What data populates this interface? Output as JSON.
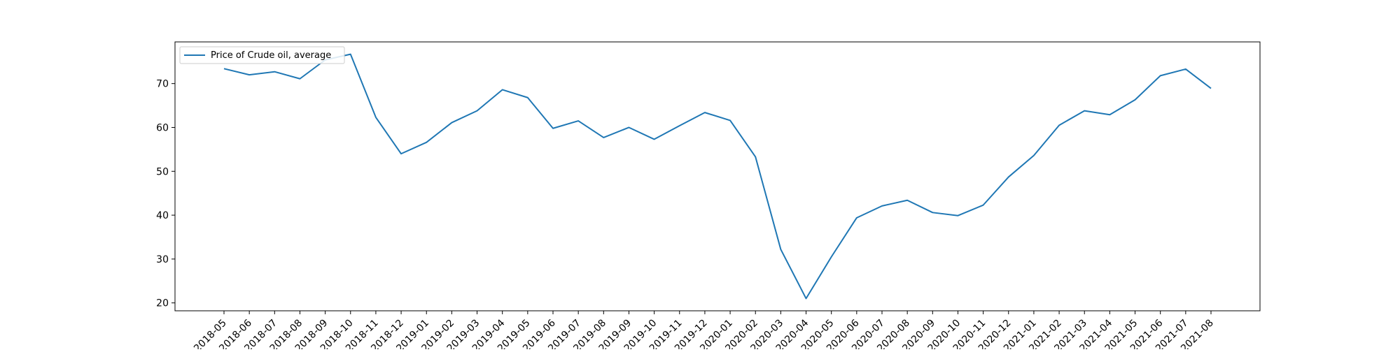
{
  "chart_data": {
    "type": "line",
    "title": "",
    "xlabel": "",
    "ylabel": "",
    "categories": [
      "2018-05",
      "2018-06",
      "2018-07",
      "2018-08",
      "2018-09",
      "2018-10",
      "2018-11",
      "2018-12",
      "2019-01",
      "2019-02",
      "2019-03",
      "2019-04",
      "2019-05",
      "2019-06",
      "2019-07",
      "2019-08",
      "2019-09",
      "2019-10",
      "2019-11",
      "2019-12",
      "2020-01",
      "2020-02",
      "2020-03",
      "2020-04",
      "2020-05",
      "2020-06",
      "2020-07",
      "2020-08",
      "2020-09",
      "2020-10",
      "2020-11",
      "2020-12",
      "2021-01",
      "2021-02",
      "2021-03",
      "2021-04",
      "2021-05",
      "2021-06",
      "2021-07",
      "2021-08"
    ],
    "series": [
      {
        "name": "Price of Crude oil, average",
        "color": "#1f77b4",
        "values": [
          73.4,
          72.0,
          72.7,
          71.1,
          75.4,
          76.7,
          62.3,
          54.0,
          56.6,
          61.1,
          63.8,
          68.6,
          66.8,
          59.8,
          61.5,
          57.7,
          60.0,
          57.3,
          60.4,
          63.4,
          61.6,
          53.3,
          32.2,
          21.0,
          30.5,
          39.4,
          42.1,
          43.4,
          40.6,
          39.9,
          42.3,
          48.7,
          53.6,
          60.5,
          63.8,
          62.9,
          66.3,
          71.8,
          73.3,
          68.9
        ]
      }
    ],
    "yticks": [
      20,
      30,
      40,
      50,
      60,
      70
    ],
    "ylim": [
      18.2,
      79.5
    ],
    "grid": false,
    "legend_position": "top-left"
  }
}
